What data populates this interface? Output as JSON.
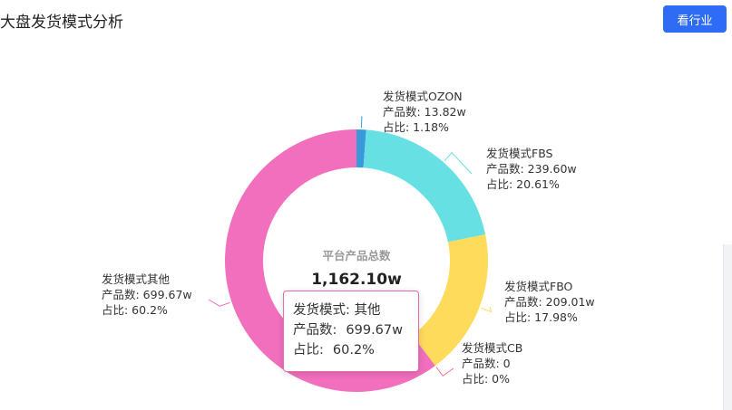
{
  "header": {
    "title": "大盘发货模式分析",
    "button_label": "看行业"
  },
  "colors": {
    "ozon": "#3a9ad9",
    "fbs": "#67e0e3",
    "fbo": "#ffdb5c",
    "cb": "#fb7293",
    "other": "#f26fbe",
    "accent": "#2f6cf5"
  },
  "chart_data": {
    "type": "pie",
    "variant": "donut",
    "center_title": "平台产品总数",
    "center_value": "1,162.10w",
    "count_prefix": "产品数: ",
    "share_prefix": "占比: ",
    "slices": [
      {
        "name": "发货模式OZON",
        "count": 13.82,
        "count_label": "13.82w",
        "share": 1.18,
        "share_label": "1.18%",
        "color_key": "ozon"
      },
      {
        "name": "发货模式FBS",
        "count": 239.6,
        "count_label": "239.60w",
        "share": 20.61,
        "share_label": "20.61%",
        "color_key": "fbs"
      },
      {
        "name": "发货模式FBO",
        "count": 209.01,
        "count_label": "209.01w",
        "share": 17.98,
        "share_label": "17.98%",
        "color_key": "fbo"
      },
      {
        "name": "发货模式CB",
        "count": 0,
        "count_label": "0",
        "share": 0,
        "share_label": "0%",
        "color_key": "cb"
      },
      {
        "name": "发货模式其他",
        "count": 699.67,
        "count_label": "699.67w",
        "share": 60.2,
        "share_label": "60.2%",
        "color_key": "other"
      }
    ],
    "legend": "none"
  },
  "tooltip": {
    "mode_label": "发货模式: ",
    "mode_value": "其他",
    "count_label": "产品数:",
    "count_value": "699.67w",
    "share_label": "占比:",
    "share_value": "60.2%"
  }
}
